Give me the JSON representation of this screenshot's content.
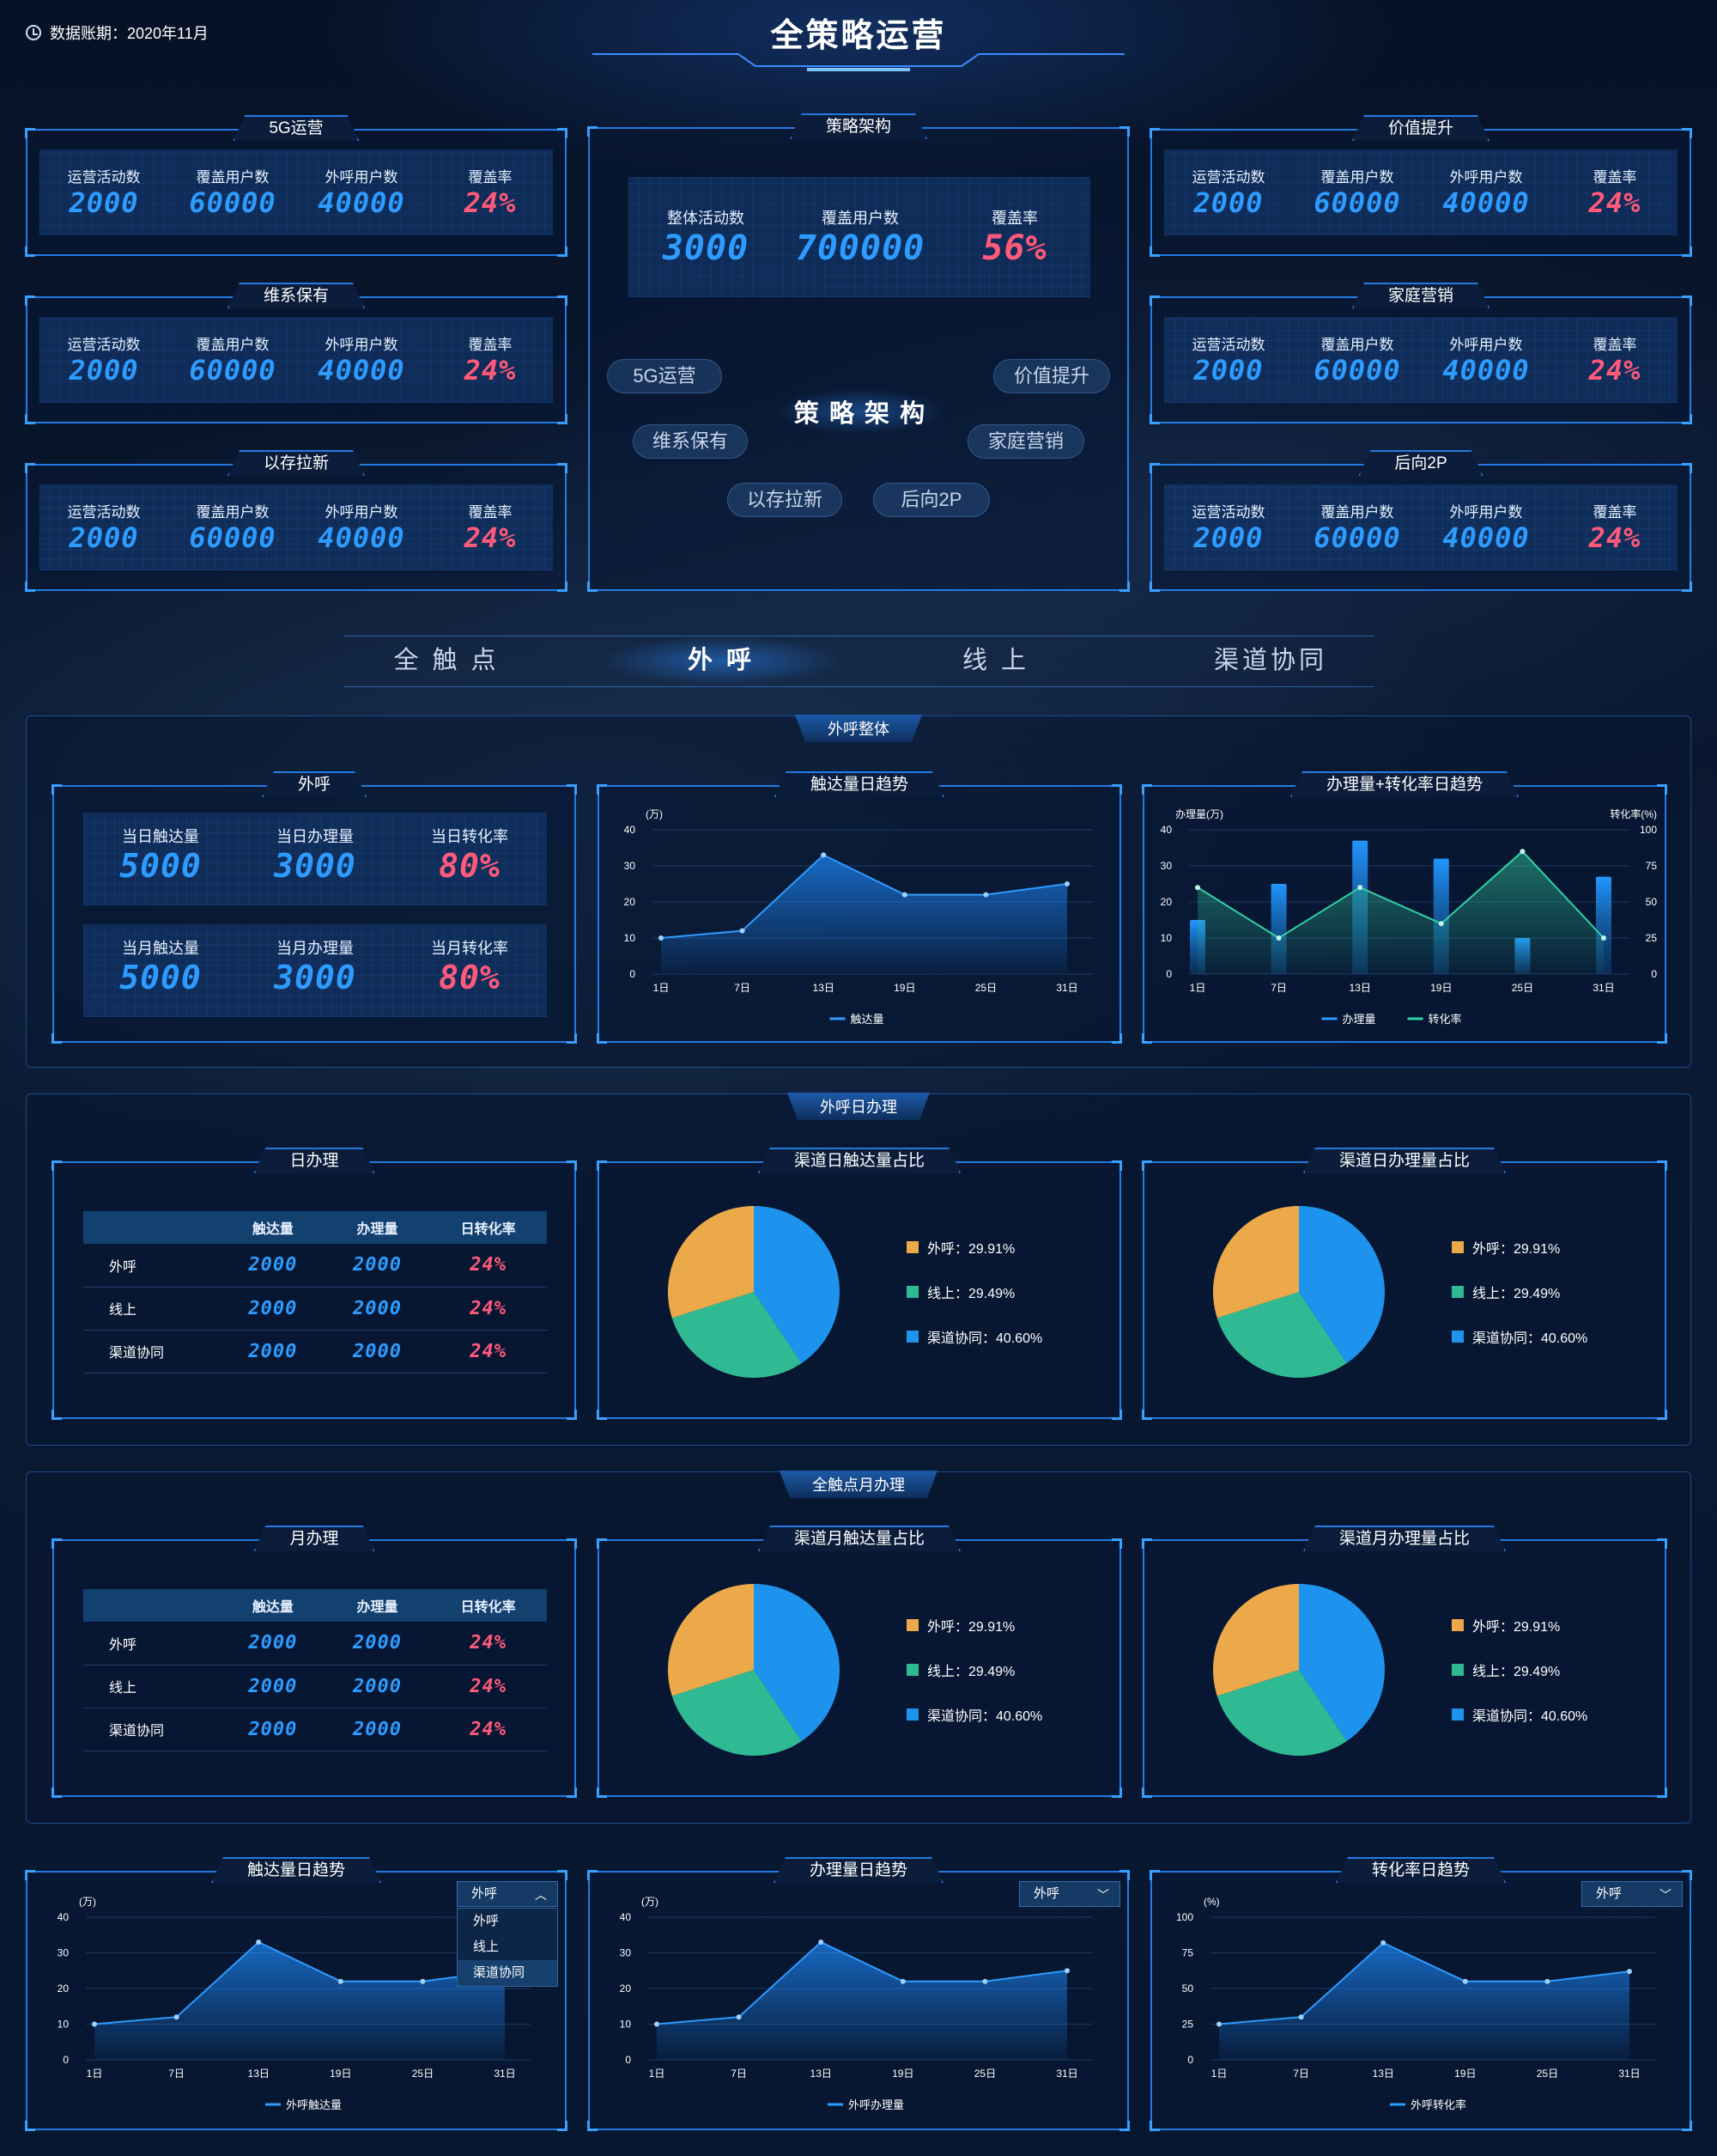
{
  "header": {
    "title": "全策略运营",
    "period": "数据账期：2020年11月"
  },
  "strategy_cards": [
    {
      "title": "5G运营",
      "labels": [
        "运营活动数",
        "覆盖用户数",
        "外呼用户数",
        "覆盖率"
      ],
      "values": [
        "2000",
        "60000",
        "40000",
        "24%"
      ]
    },
    {
      "title": "维系保有",
      "labels": [
        "运营活动数",
        "覆盖用户数",
        "外呼用户数",
        "覆盖率"
      ],
      "values": [
        "2000",
        "60000",
        "40000",
        "24%"
      ]
    },
    {
      "title": "以存拉新",
      "labels": [
        "运营活动数",
        "覆盖用户数",
        "外呼用户数",
        "覆盖率"
      ],
      "values": [
        "2000",
        "60000",
        "40000",
        "24%"
      ]
    },
    {
      "title": "价值提升",
      "labels": [
        "运营活动数",
        "覆盖用户数",
        "外呼用户数",
        "覆盖率"
      ],
      "values": [
        "2000",
        "60000",
        "40000",
        "24%"
      ]
    },
    {
      "title": "家庭营销",
      "labels": [
        "运营活动数",
        "覆盖用户数",
        "外呼用户数",
        "覆盖率"
      ],
      "values": [
        "2000",
        "60000",
        "40000",
        "24%"
      ]
    },
    {
      "title": "后向2P",
      "labels": [
        "运营活动数",
        "覆盖用户数",
        "外呼用户数",
        "覆盖率"
      ],
      "values": [
        "2000",
        "60000",
        "40000",
        "24%"
      ]
    }
  ],
  "arch": {
    "title": "策略架构",
    "labels": [
      "整体活动数",
      "覆盖用户数",
      "覆盖率"
    ],
    "values": [
      "3000",
      "700000",
      "56%"
    ],
    "center": "策 略 架 构",
    "nodes": [
      "5G运营",
      "价值提升",
      "维系保有",
      "家庭营销",
      "以存拉新",
      "后向2P"
    ]
  },
  "tabs": [
    "全 触 点",
    "外 呼",
    "线 上",
    "渠道协同"
  ],
  "colors": {
    "accent": "#2e9bff",
    "red": "#ff5a7a",
    "orange": "#eca94a",
    "green": "#2fba93",
    "blue": "#1e93ee"
  },
  "group1": {
    "title": "外呼整体",
    "kpi": {
      "title": "外呼",
      "row1_labels": [
        "当日触达量",
        "当日办理量",
        "当日转化率"
      ],
      "row1_values": [
        "5000",
        "3000",
        "80%"
      ],
      "row2_labels": [
        "当月触达量",
        "当月办理量",
        "当月转化率"
      ],
      "row2_values": [
        "5000",
        "3000",
        "80%"
      ]
    },
    "trend_title": "触达量日趋势",
    "combo_title": "办理量+转化率日趋势"
  },
  "group2": {
    "title": "外呼日办理",
    "table_title": "日办理",
    "pie1_title": "渠道日触达量占比",
    "pie2_title": "渠道日办理量占比"
  },
  "group3": {
    "title": "全触点月办理",
    "table_title": "月办理",
    "pie1_title": "渠道月触达量占比",
    "pie2_title": "渠道月办理量占比"
  },
  "table": {
    "headers": [
      "",
      "触达量",
      "办理量",
      "日转化率"
    ],
    "rows": [
      {
        "name": "外呼",
        "v1": "2000",
        "v2": "2000",
        "v3": "24%"
      },
      {
        "name": "线上",
        "v1": "2000",
        "v2": "2000",
        "v3": "24%"
      },
      {
        "name": "渠道协同",
        "v1": "2000",
        "v2": "2000",
        "v3": "24%"
      }
    ]
  },
  "pie_legend": [
    "外呼：29.91%",
    "线上：29.49%",
    "渠道协同：40.60%"
  ],
  "bottom": {
    "c1_title": "触达量日趋势",
    "c2_title": "办理量日趋势",
    "c3_title": "转化率日趋势",
    "select_value": "外呼",
    "dropdown_options": [
      "外呼",
      "线上",
      "渠道协同"
    ]
  },
  "chart_data": [
    {
      "id": "touch_trend",
      "type": "area",
      "title": "触达量日趋势",
      "x": [
        "1日",
        "7日",
        "13日",
        "19日",
        "25日",
        "31日"
      ],
      "series": [
        {
          "name": "触达量",
          "values": [
            10,
            12,
            33,
            22,
            22,
            25
          ]
        }
      ],
      "ylabel": "(万)",
      "ylim": [
        0,
        40
      ],
      "yticks": [
        0,
        10,
        20,
        30,
        40
      ],
      "legend": "bottom",
      "grid": true
    },
    {
      "id": "combo_trend",
      "type": "bar",
      "title": "办理量+转化率日趋势",
      "x": [
        "1日",
        "7日",
        "13日",
        "19日",
        "25日",
        "31日"
      ],
      "series": [
        {
          "name": "办理量",
          "type": "bar",
          "axis": "left",
          "values": [
            15,
            25,
            37,
            32,
            10,
            27
          ]
        },
        {
          "name": "转化率",
          "type": "area",
          "axis": "right",
          "values": [
            60,
            25,
            60,
            35,
            85,
            25
          ]
        }
      ],
      "ylabel": "办理量(万)",
      "ylabel_right": "转化率(%)",
      "ylim": [
        0,
        40
      ],
      "ylim_right": [
        0,
        100
      ],
      "yticks": [
        0,
        10,
        20,
        30,
        40
      ],
      "yticks_right": [
        0,
        25,
        50,
        75,
        100
      ],
      "legend": "bottom",
      "grid": true
    },
    {
      "id": "pie_day_touch",
      "type": "pie",
      "title": "渠道日触达量占比",
      "labels": [
        "外呼",
        "线上",
        "渠道协同"
      ],
      "values": [
        29.91,
        29.49,
        40.6
      ]
    },
    {
      "id": "pie_day_handle",
      "type": "pie",
      "title": "渠道日办理量占比",
      "labels": [
        "外呼",
        "线上",
        "渠道协同"
      ],
      "values": [
        29.91,
        29.49,
        40.6
      ]
    },
    {
      "id": "pie_month_touch",
      "type": "pie",
      "title": "渠道月触达量占比",
      "labels": [
        "外呼",
        "线上",
        "渠道协同"
      ],
      "values": [
        29.91,
        29.49,
        40.6
      ]
    },
    {
      "id": "pie_month_handle",
      "type": "pie",
      "title": "渠道月办理量占比",
      "labels": [
        "外呼",
        "线上",
        "渠道协同"
      ],
      "values": [
        29.91,
        29.49,
        40.6
      ]
    },
    {
      "id": "b_touch",
      "type": "area",
      "title": "触达量日趋势",
      "x": [
        "1日",
        "7日",
        "13日",
        "19日",
        "25日",
        "31日"
      ],
      "series": [
        {
          "name": "外呼触达量",
          "values": [
            10,
            12,
            33,
            22,
            22,
            25
          ]
        }
      ],
      "ylabel": "(万)",
      "ylim": [
        0,
        40
      ],
      "yticks": [
        0,
        10,
        20,
        30,
        40
      ],
      "legend": "bottom",
      "grid": true
    },
    {
      "id": "b_handle",
      "type": "area",
      "title": "办理量日趋势",
      "x": [
        "1日",
        "7日",
        "13日",
        "19日",
        "25日",
        "31日"
      ],
      "series": [
        {
          "name": "外呼办理量",
          "values": [
            10,
            12,
            33,
            22,
            22,
            25
          ]
        }
      ],
      "ylabel": "(万)",
      "ylim": [
        0,
        40
      ],
      "yticks": [
        0,
        10,
        20,
        30,
        40
      ],
      "legend": "bottom",
      "grid": true
    },
    {
      "id": "b_rate",
      "type": "area",
      "title": "转化率日趋势",
      "x": [
        "1日",
        "7日",
        "13日",
        "19日",
        "25日",
        "31日"
      ],
      "series": [
        {
          "name": "外呼转化率",
          "values": [
            25,
            30,
            82,
            55,
            55,
            62
          ]
        }
      ],
      "ylabel": "(%)",
      "ylim": [
        0,
        100
      ],
      "yticks": [
        0,
        25,
        50,
        75,
        100
      ],
      "legend": "bottom",
      "grid": true
    }
  ]
}
